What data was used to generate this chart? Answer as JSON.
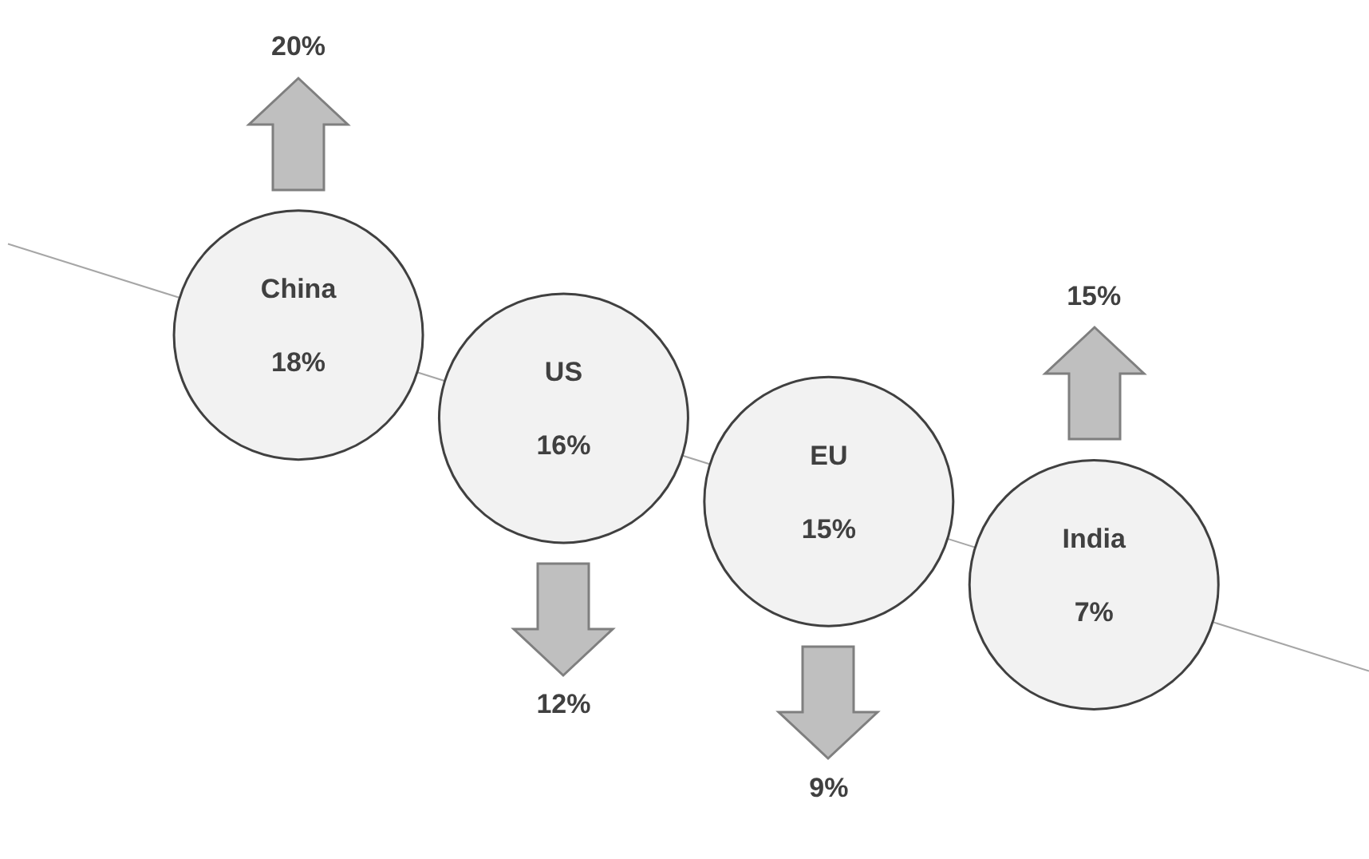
{
  "chart_data": {
    "type": "other",
    "categories": [
      "China",
      "US",
      "EU",
      "India"
    ],
    "series": [
      {
        "type": "bubble",
        "color": "#f2f2f2",
        "values": [
          18,
          16,
          15,
          7
        ],
        "value_labels": [
          "18%",
          "16%",
          "15%",
          "7%"
        ]
      },
      {
        "type": "other",
        "color": "#bfbfbf",
        "values": [
          20,
          12,
          9,
          15
        ],
        "value_labels": [
          "20%",
          "12%",
          "9%",
          "15%"
        ]
      }
    ]
  }
}
